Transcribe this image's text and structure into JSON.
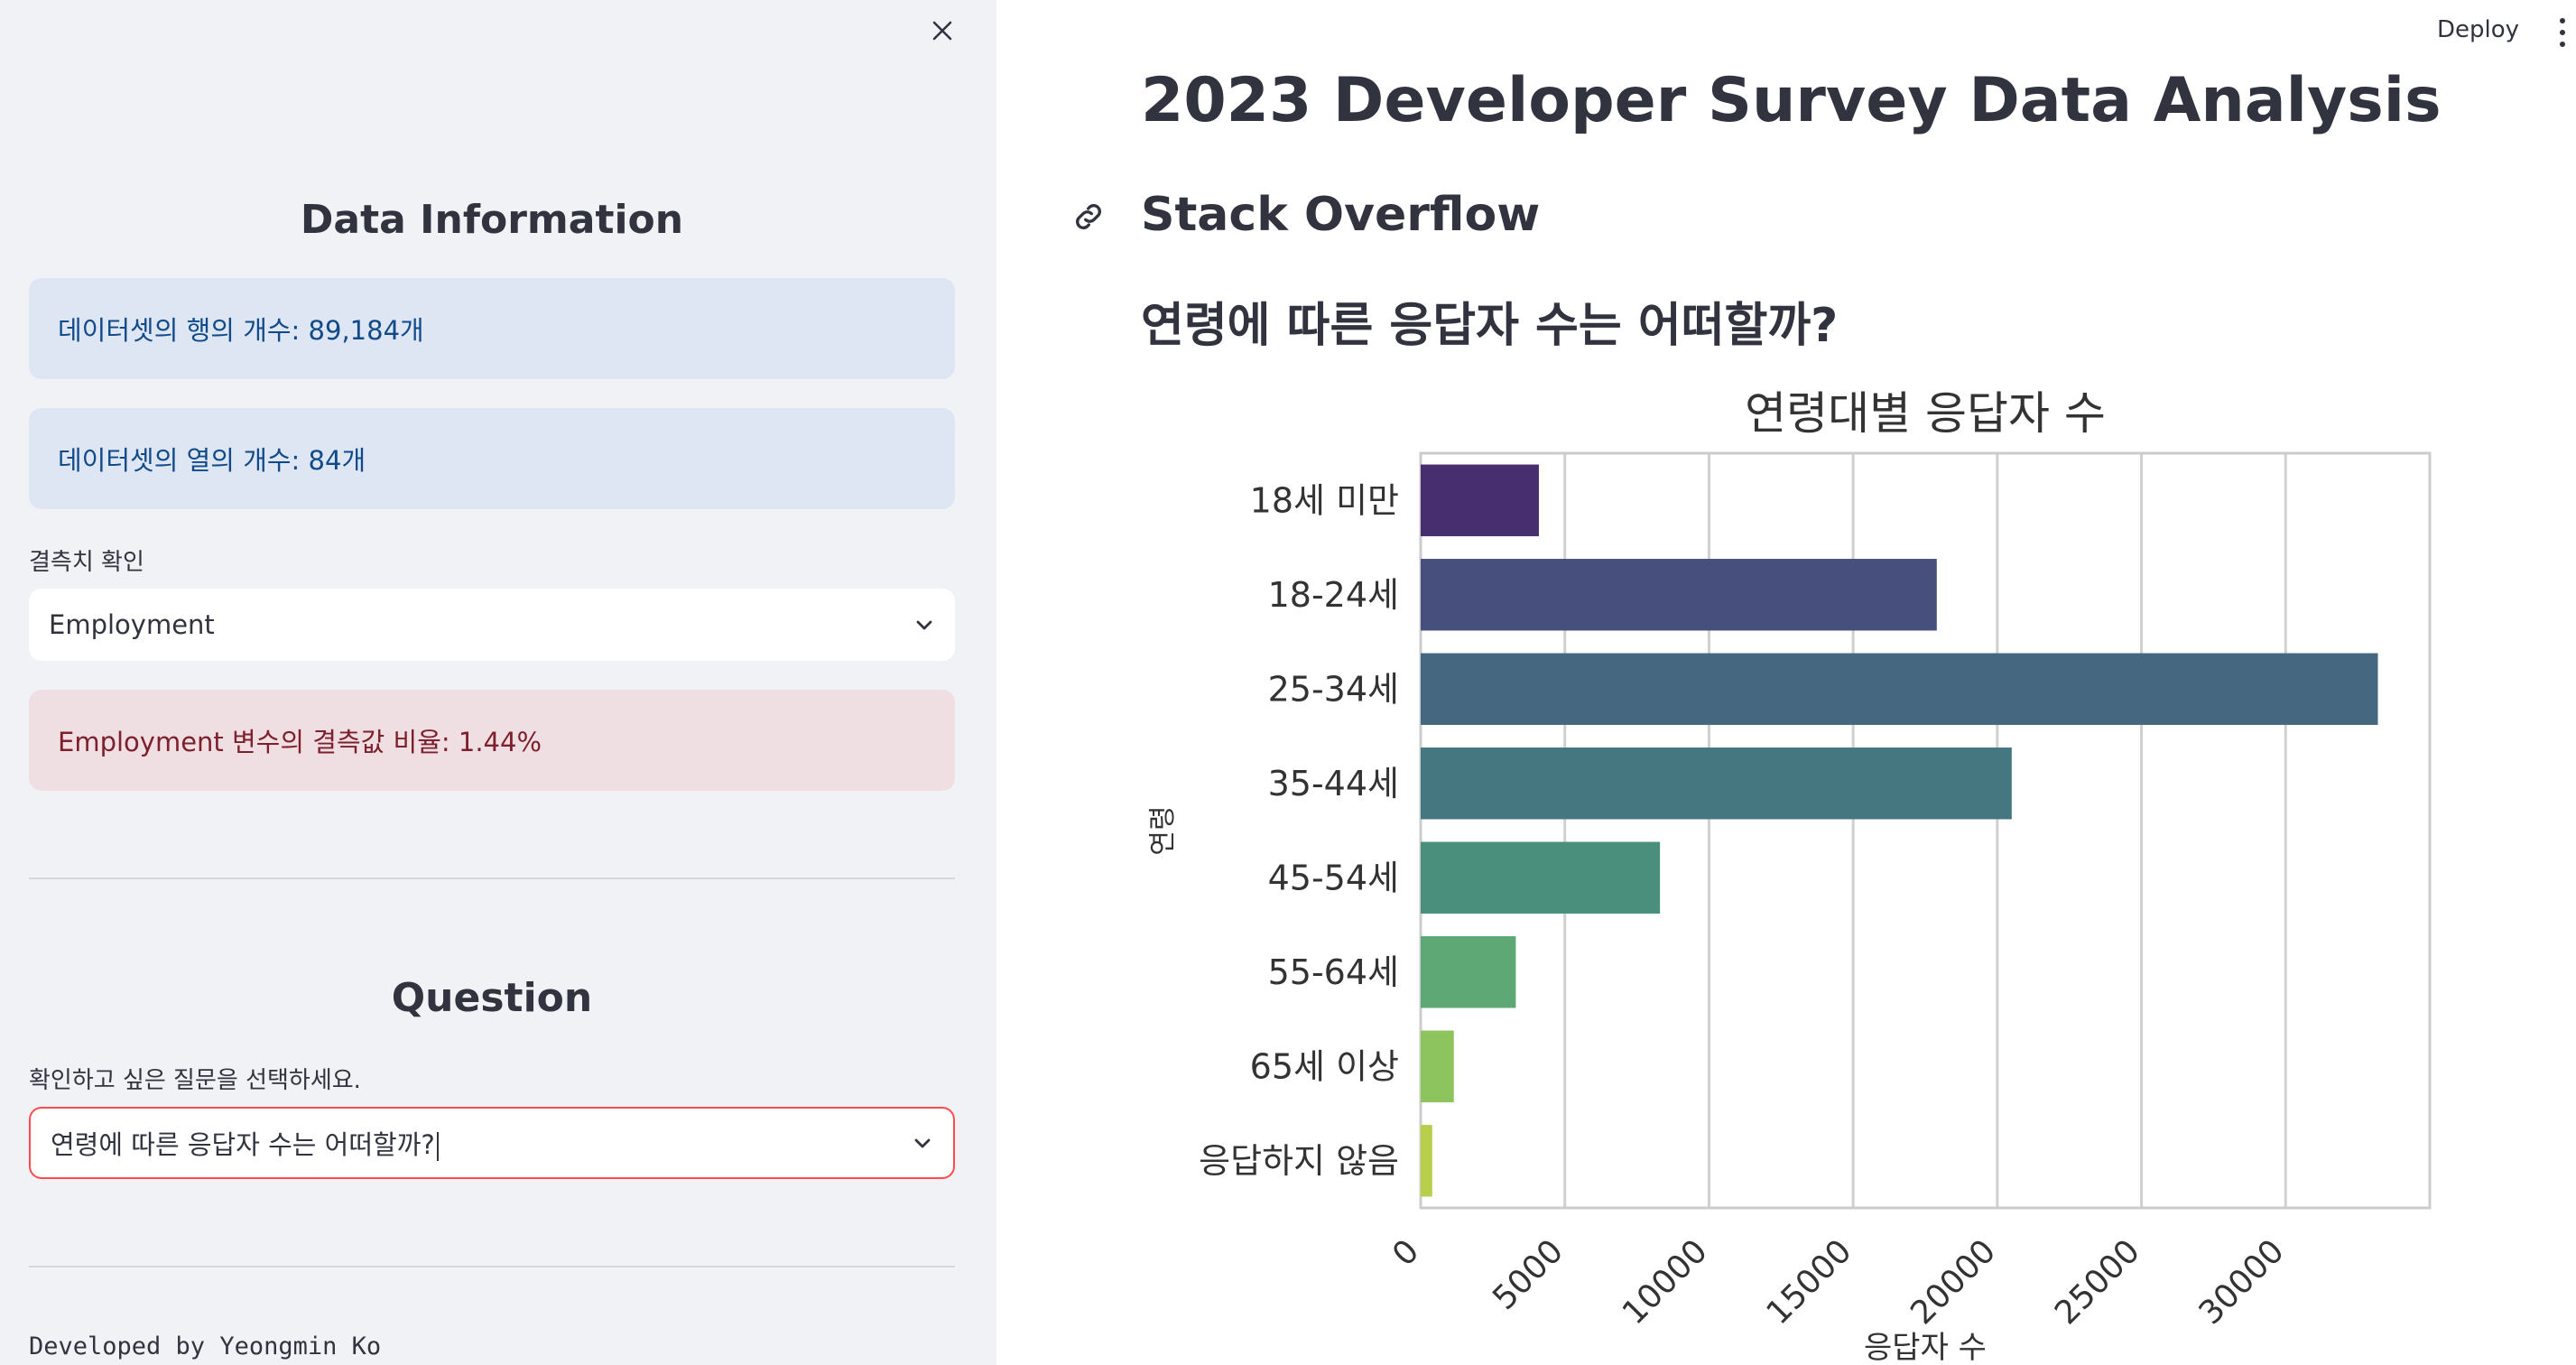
{
  "sidebar": {
    "data_info_heading": "Data Information",
    "rows_info": "데이터셋의 행의 개수: 89,184개",
    "cols_info": "데이터셋의 열의 개수: 84개",
    "missing_label": "결측치 확인",
    "missing_select_value": "Employment",
    "missing_result": "Employment 변수의 결측값 비율: 1.44%",
    "question_heading": "Question",
    "question_label": "확인하고 싶은 질문을 선택하세요.",
    "question_select_value": "연령에 따른 응답자 수는 어떠할까?",
    "footer": "Developed by Yeongmin Ko"
  },
  "header": {
    "deploy_label": "Deploy"
  },
  "main": {
    "title": "2023 Developer Survey Data Analysis",
    "subtitle": "Stack Overflow",
    "question": "연령에 따른 응답자 수는 어떠할까?"
  },
  "chart_data": {
    "type": "bar",
    "orientation": "horizontal",
    "title": "연령대별 응답자 수",
    "xlabel": "응답자 수",
    "ylabel": "연령",
    "categories": [
      "18세 미만",
      "18-24세",
      "25-34세",
      "35-44세",
      "45-54세",
      "55-64세",
      "65세 이상",
      "응답하지 않음"
    ],
    "values": [
      4100,
      17900,
      33200,
      20500,
      8300,
      3300,
      1150,
      400
    ],
    "colors": [
      "#472f6f",
      "#474f7d",
      "#456880",
      "#457781",
      "#4a8e7c",
      "#5ea875",
      "#8dc45e",
      "#b7cf4b"
    ],
    "xticks": [
      0,
      5000,
      10000,
      15000,
      20000,
      25000,
      30000
    ],
    "xlim": [
      0,
      35000
    ],
    "grid": true
  },
  "icons": {
    "close": "close-icon",
    "chevron": "chevron-down-icon",
    "link": "link-icon",
    "menu": "more-vertical-icon"
  }
}
